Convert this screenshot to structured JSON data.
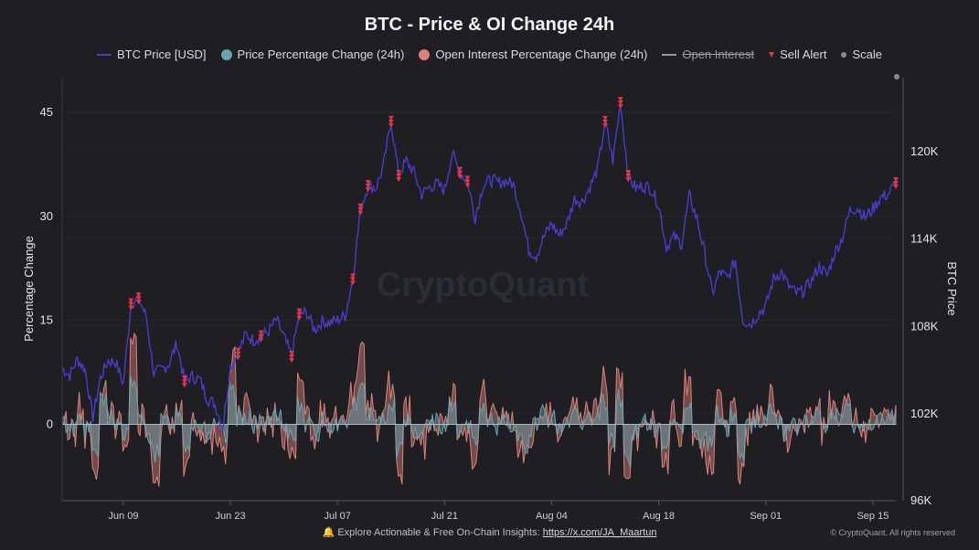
{
  "chart_data": {
    "type": "line",
    "title": "BTC - Price & OI Change 24h",
    "legend": [
      {
        "name": "BTC Price [USD]",
        "color": "#4a3cc9",
        "kind": "line",
        "enabled": true
      },
      {
        "name": "Price Percentage Change (24h)",
        "color": "#6aa3b0",
        "kind": "dot",
        "enabled": true
      },
      {
        "name": "Open Interest Percentage Change (24h)",
        "color": "#d9837b",
        "kind": "dot",
        "enabled": true
      },
      {
        "name": "Open Interest",
        "color": "#9a9aa0",
        "kind": "line",
        "enabled": false
      },
      {
        "name": "Sell Alert",
        "color": "#e0364d",
        "kind": "triangle",
        "enabled": true
      },
      {
        "name": "Scale",
        "color": "#8a8a90",
        "kind": "small-dot",
        "enabled": true
      }
    ],
    "legend_position": "top",
    "y_left": {
      "label": "Percentage Change",
      "ticks": [
        0,
        15,
        30,
        45
      ],
      "range": [
        -11,
        50
      ]
    },
    "y_right": {
      "label": "BTC Price",
      "ticks": [
        102000,
        108000,
        114000,
        120000
      ],
      "tick_labels": [
        "102K",
        "108K",
        "114K",
        "120K"
      ],
      "bottom_label": "96K",
      "range": [
        96000,
        125000
      ]
    },
    "x_axis": {
      "start": "2025-06-01",
      "end": "2025-09-18",
      "ticks": [
        "Jun 09",
        "Jun 23",
        "Jul 07",
        "Jul 21",
        "Aug 04",
        "Aug 18",
        "Sep 01",
        "Sep 15"
      ],
      "tick_dates": [
        "2025-06-09",
        "2025-06-23",
        "2025-07-07",
        "2025-07-21",
        "2025-08-04",
        "2025-08-18",
        "2025-09-01",
        "2025-09-15"
      ]
    },
    "grid": true,
    "series": [
      {
        "name": "BTC Price [USD]",
        "dates": [
          "2025-06-01",
          "2025-06-02",
          "2025-06-03",
          "2025-06-04",
          "2025-06-05",
          "2025-06-06",
          "2025-06-07",
          "2025-06-08",
          "2025-06-09",
          "2025-06-10",
          "2025-06-11",
          "2025-06-12",
          "2025-06-13",
          "2025-06-14",
          "2025-06-15",
          "2025-06-16",
          "2025-06-17",
          "2025-06-18",
          "2025-06-19",
          "2025-06-20",
          "2025-06-21",
          "2025-06-22",
          "2025-06-23",
          "2025-06-24",
          "2025-06-25",
          "2025-06-26",
          "2025-06-27",
          "2025-06-28",
          "2025-06-29",
          "2025-06-30",
          "2025-07-01",
          "2025-07-02",
          "2025-07-03",
          "2025-07-04",
          "2025-07-05",
          "2025-07-06",
          "2025-07-07",
          "2025-07-08",
          "2025-07-09",
          "2025-07-10",
          "2025-07-11",
          "2025-07-12",
          "2025-07-13",
          "2025-07-14",
          "2025-07-15",
          "2025-07-16",
          "2025-07-17",
          "2025-07-18",
          "2025-07-19",
          "2025-07-20",
          "2025-07-21",
          "2025-07-22",
          "2025-07-23",
          "2025-07-24",
          "2025-07-25",
          "2025-07-26",
          "2025-07-27",
          "2025-07-28",
          "2025-07-29",
          "2025-07-30",
          "2025-07-31",
          "2025-08-01",
          "2025-08-02",
          "2025-08-03",
          "2025-08-04",
          "2025-08-05",
          "2025-08-06",
          "2025-08-07",
          "2025-08-08",
          "2025-08-09",
          "2025-08-10",
          "2025-08-11",
          "2025-08-12",
          "2025-08-13",
          "2025-08-14",
          "2025-08-15",
          "2025-08-16",
          "2025-08-17",
          "2025-08-18",
          "2025-08-19",
          "2025-08-20",
          "2025-08-21",
          "2025-08-22",
          "2025-08-23",
          "2025-08-24",
          "2025-08-25",
          "2025-08-26",
          "2025-08-27",
          "2025-08-28",
          "2025-08-29",
          "2025-08-30",
          "2025-08-31",
          "2025-09-01",
          "2025-09-02",
          "2025-09-03",
          "2025-09-04",
          "2025-09-05",
          "2025-09-06",
          "2025-09-07",
          "2025-09-08",
          "2025-09-09",
          "2025-09-10",
          "2025-09-11",
          "2025-09-12",
          "2025-09-13",
          "2025-09-14",
          "2025-09-15",
          "2025-09-16",
          "2025-09-17",
          "2025-09-18"
        ],
        "values": [
          105100,
          104600,
          105700,
          105000,
          101700,
          104400,
          105600,
          105500,
          104000,
          109500,
          109900,
          108600,
          104700,
          105000,
          105400,
          106800,
          104200,
          104500,
          104300,
          103000,
          102600,
          101000,
          105200,
          106100,
          107400,
          107000,
          107300,
          107600,
          108400,
          107200,
          105900,
          108800,
          108900,
          107700,
          108300,
          108200,
          108400,
          108700,
          111200,
          116000,
          117600,
          117400,
          118900,
          122000,
          118300,
          119300,
          118500,
          117000,
          117500,
          117700,
          117300,
          119800,
          118500,
          117900,
          115400,
          117600,
          118000,
          117800,
          117900,
          117700,
          115800,
          113200,
          112800,
          114100,
          115000,
          114200,
          115000,
          116700,
          116500,
          117500,
          118700,
          122000,
          119300,
          123300,
          118300,
          117400,
          117600,
          117400,
          116300,
          113400,
          114100,
          113600,
          116900,
          115300,
          113000,
          110200,
          111700,
          111200,
          112500,
          108400,
          108100,
          108800,
          109300,
          111200,
          111700,
          110700,
          110200,
          110400,
          111100,
          112100,
          111400,
          113000,
          114000,
          115900,
          116100,
          115400,
          116000,
          116800,
          117000,
          117800
        ]
      }
    ],
    "sell_alerts": [
      "2025-06-10",
      "2025-06-11",
      "2025-06-17",
      "2025-06-24",
      "2025-06-27",
      "2025-07-01",
      "2025-07-02",
      "2025-07-09",
      "2025-07-10",
      "2025-07-11",
      "2025-07-14",
      "2025-07-15",
      "2025-07-23",
      "2025-07-24",
      "2025-08-11",
      "2025-08-13",
      "2025-08-14",
      "2025-09-18"
    ],
    "oscillators": {
      "range": [
        -9,
        14
      ],
      "price_change_color": "#6aa3b0",
      "oi_change_color": "#d9837b"
    }
  },
  "footer": {
    "text": "Explore Actionable & Free On-Chain Insights: ",
    "link": "https://x.com/JA_Maartun",
    "copyright": "© CryptoQuant. All rights reserved"
  }
}
